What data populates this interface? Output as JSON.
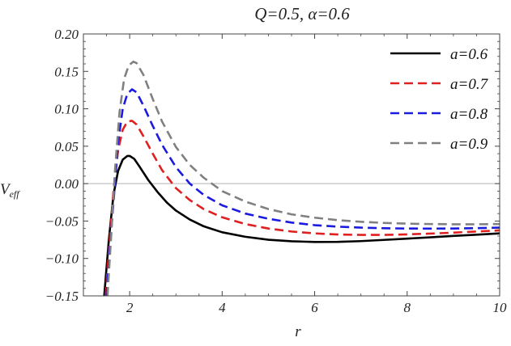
{
  "chart_data": {
    "type": "line",
    "title": "Q=0.5, α=0.6",
    "xlabel": "r",
    "ylabel": "V",
    "ylabel_sub": "eff",
    "xlim": [
      1.0,
      10.0
    ],
    "ylim": [
      -0.15,
      0.2
    ],
    "xticks": [
      2,
      4,
      6,
      8,
      10
    ],
    "xtick_labels": [
      "2",
      "4",
      "6",
      "8",
      "10"
    ],
    "yticks": [
      -0.15,
      -0.1,
      -0.05,
      0.0,
      0.05,
      0.1,
      0.15,
      0.2
    ],
    "ytick_labels": [
      "−0.15",
      "−0.10",
      "−0.05",
      "0.00",
      "0.05",
      "0.10",
      "0.15",
      "0.20"
    ],
    "zero_line": true,
    "grid": false,
    "legend_position": "top-right",
    "series": [
      {
        "name": "a=0.6",
        "color": "#000000",
        "dash": "solid",
        "x": [
          1.45,
          1.55,
          1.65,
          1.75,
          1.85,
          1.95,
          2.0,
          2.1,
          2.2,
          2.4,
          2.6,
          2.8,
          3.0,
          3.3,
          3.6,
          4.0,
          4.5,
          5.0,
          5.5,
          6.0,
          6.5,
          7.0,
          7.5,
          8.0,
          8.5,
          9.0,
          9.5,
          10.0
        ],
        "y": [
          -0.15,
          -0.075,
          -0.015,
          0.017,
          0.032,
          0.037,
          0.037,
          0.033,
          0.024,
          0.005,
          -0.011,
          -0.025,
          -0.036,
          -0.048,
          -0.057,
          -0.065,
          -0.071,
          -0.075,
          -0.077,
          -0.078,
          -0.0778,
          -0.0768,
          -0.0752,
          -0.0735,
          -0.0717,
          -0.0699,
          -0.0682,
          -0.0665
        ]
      },
      {
        "name": "a=0.7",
        "color": "#e02020",
        "dash": "dashed",
        "x": [
          1.48,
          1.55,
          1.65,
          1.75,
          1.85,
          1.95,
          2.05,
          2.15,
          2.3,
          2.5,
          2.7,
          3.0,
          3.3,
          3.6,
          4.0,
          4.5,
          5.0,
          5.5,
          6.0,
          6.5,
          7.0,
          7.5,
          8.0,
          8.5,
          9.0,
          9.5,
          10.0
        ],
        "y": [
          -0.15,
          -0.09,
          -0.01,
          0.045,
          0.072,
          0.083,
          0.084,
          0.079,
          0.063,
          0.04,
          0.018,
          -0.006,
          -0.022,
          -0.034,
          -0.045,
          -0.054,
          -0.06,
          -0.064,
          -0.0665,
          -0.068,
          -0.0685,
          -0.0685,
          -0.0678,
          -0.0668,
          -0.0655,
          -0.064,
          -0.0625
        ]
      },
      {
        "name": "a=0.8",
        "color": "#1a1ae0",
        "dash": "dashed",
        "x": [
          1.5,
          1.58,
          1.65,
          1.75,
          1.85,
          1.95,
          2.05,
          2.15,
          2.3,
          2.5,
          2.7,
          3.0,
          3.3,
          3.6,
          4.0,
          4.5,
          5.0,
          5.5,
          6.0,
          6.5,
          7.0,
          7.5,
          8.0,
          8.5,
          9.0,
          9.5,
          10.0
        ],
        "y": [
          -0.15,
          -0.08,
          -0.025,
          0.055,
          0.1,
          0.12,
          0.126,
          0.122,
          0.104,
          0.077,
          0.052,
          0.022,
          0.0,
          -0.015,
          -0.029,
          -0.04,
          -0.047,
          -0.052,
          -0.0555,
          -0.0575,
          -0.0588,
          -0.0596,
          -0.06,
          -0.0601,
          -0.06,
          -0.0595,
          -0.0588
        ]
      },
      {
        "name": "a=0.9",
        "color": "#808080",
        "dash": "dashed",
        "x": [
          1.52,
          1.6,
          1.68,
          1.78,
          1.88,
          1.98,
          2.08,
          2.15,
          2.3,
          2.5,
          2.7,
          3.0,
          3.3,
          3.6,
          4.0,
          4.5,
          5.0,
          5.5,
          6.0,
          6.5,
          7.0,
          7.5,
          8.0,
          8.5,
          9.0,
          9.5,
          10.0
        ],
        "y": [
          -0.15,
          -0.07,
          0.015,
          0.095,
          0.14,
          0.158,
          0.163,
          0.161,
          0.145,
          0.113,
          0.083,
          0.049,
          0.025,
          0.008,
          -0.01,
          -0.024,
          -0.034,
          -0.041,
          -0.0455,
          -0.0488,
          -0.051,
          -0.0525,
          -0.0535,
          -0.054,
          -0.0543,
          -0.0543,
          -0.054
        ]
      }
    ]
  }
}
